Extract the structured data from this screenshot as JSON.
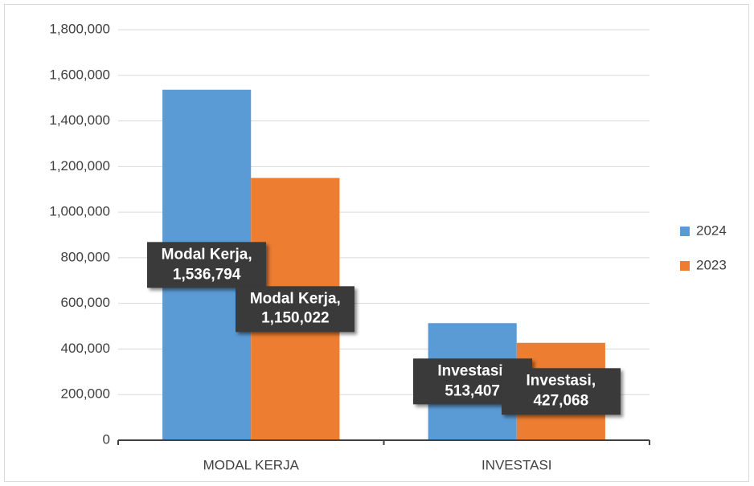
{
  "chart_data": {
    "type": "bar",
    "categories": [
      "MODAL KERJA",
      "INVESTASI"
    ],
    "series": [
      {
        "name": "2024",
        "color": "#5b9bd5",
        "values": [
          1536794,
          513407
        ],
        "value_labels": [
          "Modal Kerja, 1,536,794",
          "Investasi, 513,407"
        ]
      },
      {
        "name": "2023",
        "color": "#ed7d31",
        "values": [
          1150022,
          427068
        ],
        "value_labels": [
          "Modal Kerja, 1,150,022",
          "Investasi, 427,068"
        ]
      }
    ],
    "ylim": [
      0,
      1800000
    ],
    "yticks": [
      0,
      {
        "value": 200000,
        "label": "200,000"
      },
      {
        "value": 400000,
        "label": "400,000"
      },
      {
        "value": 600000,
        "label": "600,000"
      },
      {
        "value": 800000,
        "label": "800,000"
      },
      {
        "value": 1000000,
        "label": "1,000,000"
      },
      {
        "value": 1200000,
        "label": "1,200,000"
      },
      {
        "value": 1400000,
        "label": "1,400,000"
      },
      {
        "value": 1600000,
        "label": "1,600,000"
      },
      {
        "value": 1800000,
        "label": "1,800,000"
      }
    ],
    "grid": true,
    "legend": "right"
  }
}
